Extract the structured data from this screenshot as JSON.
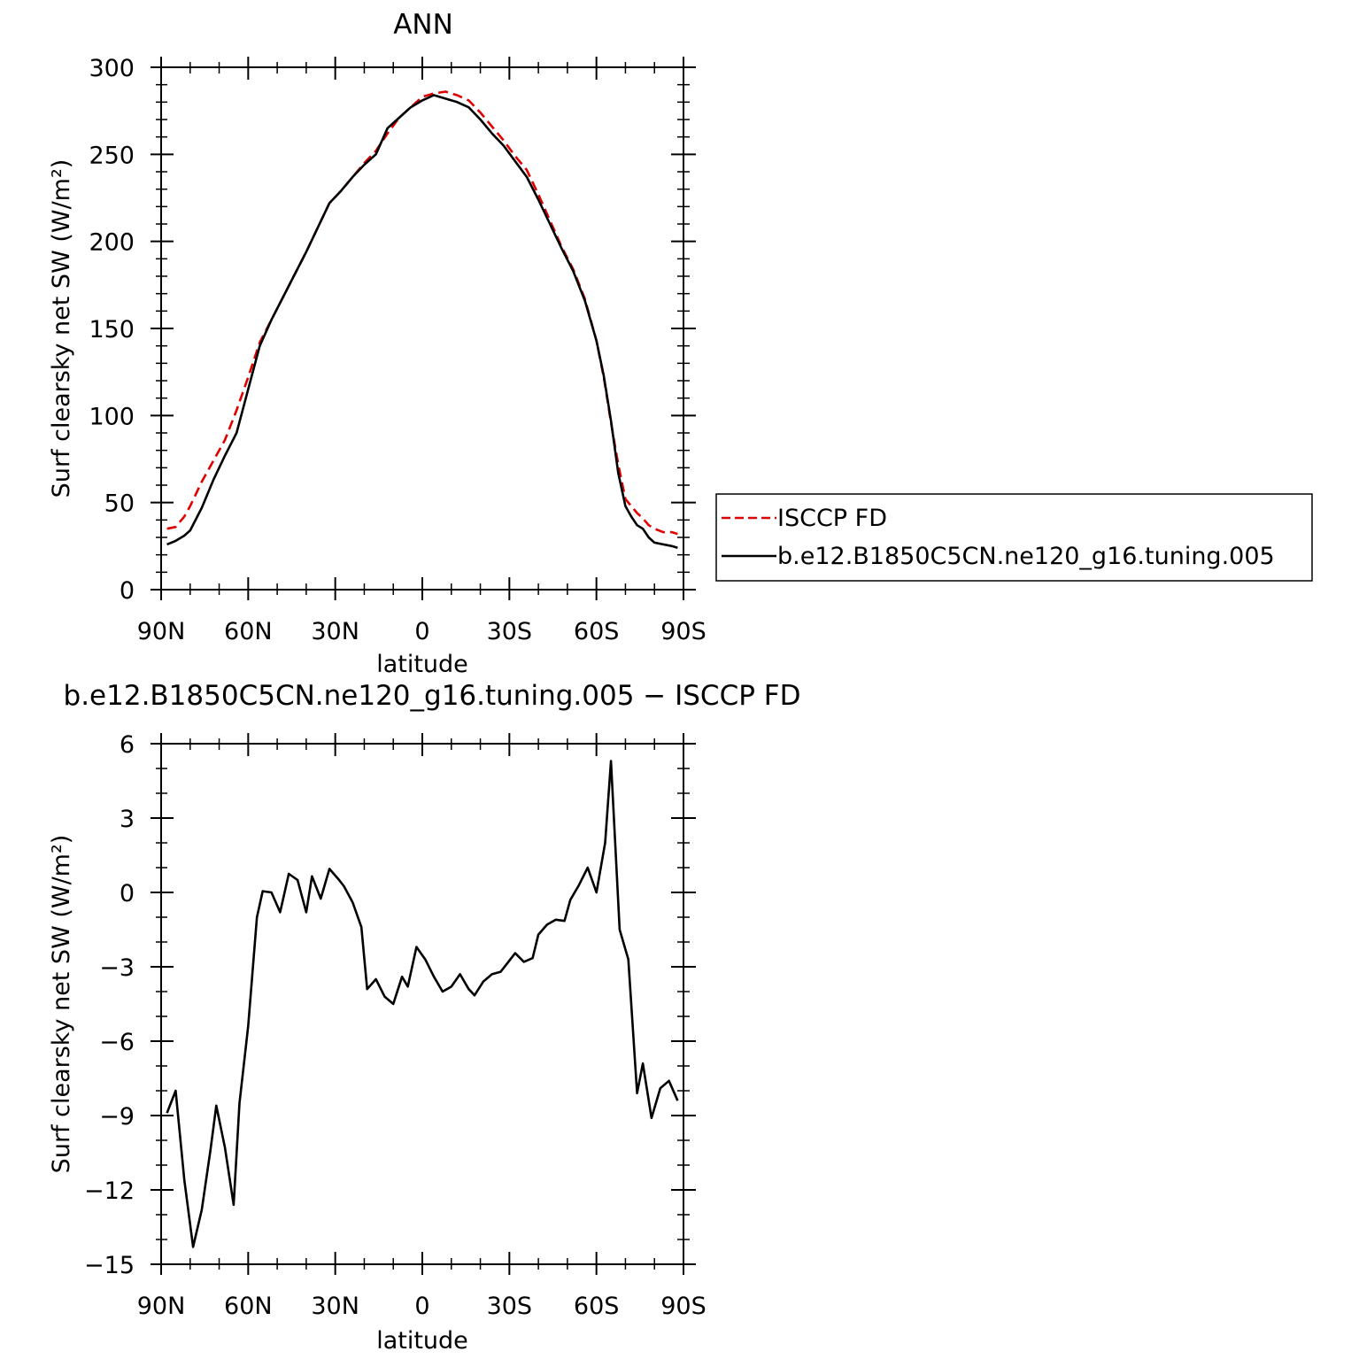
{
  "colors": {
    "isccp": "#e00000",
    "model": "#000000"
  },
  "chart_data": [
    {
      "type": "line",
      "title": "ANN",
      "xlabel": "latitude",
      "ylabel": "Surf clearsky net SW (W/m²)",
      "xlim": [
        90,
        -90
      ],
      "ylim": [
        0,
        300
      ],
      "yticks": [
        0,
        50,
        100,
        150,
        200,
        250,
        300
      ],
      "xticks": [
        {
          "value": 90,
          "label": "90N"
        },
        {
          "value": 60,
          "label": "60N"
        },
        {
          "value": 30,
          "label": "30N"
        },
        {
          "value": 0,
          "label": "0"
        },
        {
          "value": -30,
          "label": "30S"
        },
        {
          "value": -60,
          "label": "60S"
        },
        {
          "value": -90,
          "label": "90S"
        }
      ],
      "legend": {
        "placement": "right"
      },
      "series": [
        {
          "name": "ISCCP FD",
          "style": "dashed",
          "color": "#e00000",
          "x": [
            88,
            85,
            82,
            80,
            76,
            72,
            68,
            64,
            60,
            56,
            52,
            48,
            44,
            40,
            36,
            32,
            28,
            24,
            20,
            16,
            12,
            8,
            4,
            0,
            -4,
            -8,
            -12,
            -16,
            -20,
            -24,
            -28,
            -32,
            -36,
            -40,
            -44,
            -48,
            -52,
            -56,
            -60,
            -62.5,
            -65,
            -67.5,
            -70,
            -72,
            -74,
            -76,
            -78,
            -80,
            -83,
            -86,
            -88
          ],
          "y": [
            35,
            36,
            42,
            48,
            62,
            74,
            86,
            103,
            122,
            142,
            155,
            168,
            181,
            194,
            208,
            222,
            229,
            237,
            245,
            252,
            262,
            271,
            277,
            283,
            285,
            286,
            284,
            281,
            274,
            266,
            258,
            249,
            241,
            227,
            212,
            197,
            184,
            167,
            143,
            122,
            96,
            72,
            52,
            48,
            44,
            41,
            37,
            35,
            33,
            33,
            32
          ]
        },
        {
          "name": "b.e12.B1850C5CN.ne120_g16.tuning.005",
          "style": "solid",
          "color": "#000000",
          "x": [
            88,
            85,
            82,
            80,
            76,
            72,
            68,
            64,
            60,
            56,
            52,
            48,
            44,
            40,
            36,
            32,
            28,
            24,
            20,
            16,
            12,
            8,
            4,
            0,
            -4,
            -8,
            -12,
            -16,
            -20,
            -24,
            -28,
            -32,
            -36,
            -40,
            -44,
            -48,
            -52,
            -56,
            -60,
            -62.5,
            -65,
            -67.5,
            -70,
            -72,
            -74,
            -76,
            -78,
            -80,
            -83,
            -86,
            -88
          ],
          "y": [
            26,
            28,
            31,
            34,
            47,
            63,
            77,
            90,
            115,
            140,
            155,
            168,
            181,
            194,
            208,
            222,
            229,
            237,
            244,
            250,
            265,
            271,
            277,
            281,
            284,
            282,
            280,
            277,
            270,
            262,
            255,
            246,
            237,
            224,
            210,
            196,
            183,
            166,
            143,
            123,
            97,
            67,
            48,
            42,
            37,
            35,
            30,
            27,
            26,
            25,
            24
          ]
        }
      ]
    },
    {
      "type": "line",
      "title": "b.e12.B1850C5CN.ne120_g16.tuning.005 − ISCCP FD",
      "xlabel": "latitude",
      "ylabel": "Surf clearsky net SW (W/m²)",
      "xlim": [
        90,
        -90
      ],
      "ylim": [
        -15,
        6
      ],
      "yticks": [
        6,
        3,
        0,
        -3,
        -6,
        -9,
        -12,
        -15
      ],
      "xticks": [
        {
          "value": 90,
          "label": "90N"
        },
        {
          "value": 60,
          "label": "60N"
        },
        {
          "value": 30,
          "label": "30N"
        },
        {
          "value": 0,
          "label": "0"
        },
        {
          "value": -30,
          "label": "30S"
        },
        {
          "value": -60,
          "label": "60S"
        },
        {
          "value": -90,
          "label": "90S"
        }
      ],
      "series": [
        {
          "style": "solid",
          "color": "#000000",
          "x": [
            88,
            85,
            82,
            79,
            76,
            73,
            71,
            68,
            65,
            63,
            60,
            57,
            55,
            52,
            49,
            46,
            43,
            40,
            38,
            35,
            32,
            29,
            27,
            24,
            21,
            19,
            16,
            13,
            10,
            7,
            5,
            2,
            -1,
            -4,
            -7,
            -10,
            -13,
            -16,
            -18,
            -21,
            -24,
            -27,
            -29,
            -32,
            -35,
            -38,
            -40,
            -43,
            -46,
            -49,
            -51,
            -54,
            -57,
            -60,
            -63,
            -65,
            -68,
            -71,
            -74,
            -76,
            -79,
            -82,
            -85,
            -88
          ],
          "y": [
            -8.9,
            -8.0,
            -11.6,
            -14.3,
            -12.8,
            -10.4,
            -8.6,
            -10.3,
            -12.6,
            -8.5,
            -5.4,
            -1.0,
            0.05,
            0.0,
            -0.8,
            0.75,
            0.5,
            -0.8,
            0.65,
            -0.25,
            0.95,
            0.55,
            0.25,
            -0.4,
            -1.4,
            -3.9,
            -3.5,
            -4.2,
            -4.5,
            -3.4,
            -3.8,
            -2.2,
            -2.7,
            -3.4,
            -4.0,
            -3.8,
            -3.3,
            -3.9,
            -4.15,
            -3.6,
            -3.3,
            -3.2,
            -2.9,
            -2.45,
            -2.8,
            -2.65,
            -1.7,
            -1.3,
            -1.1,
            -1.15,
            -0.3,
            0.3,
            1.0,
            0.0,
            2.0,
            5.3,
            -1.5,
            -2.7,
            -8.1,
            -6.9,
            -9.1,
            -7.9,
            -7.6,
            -8.4
          ]
        }
      ]
    }
  ]
}
